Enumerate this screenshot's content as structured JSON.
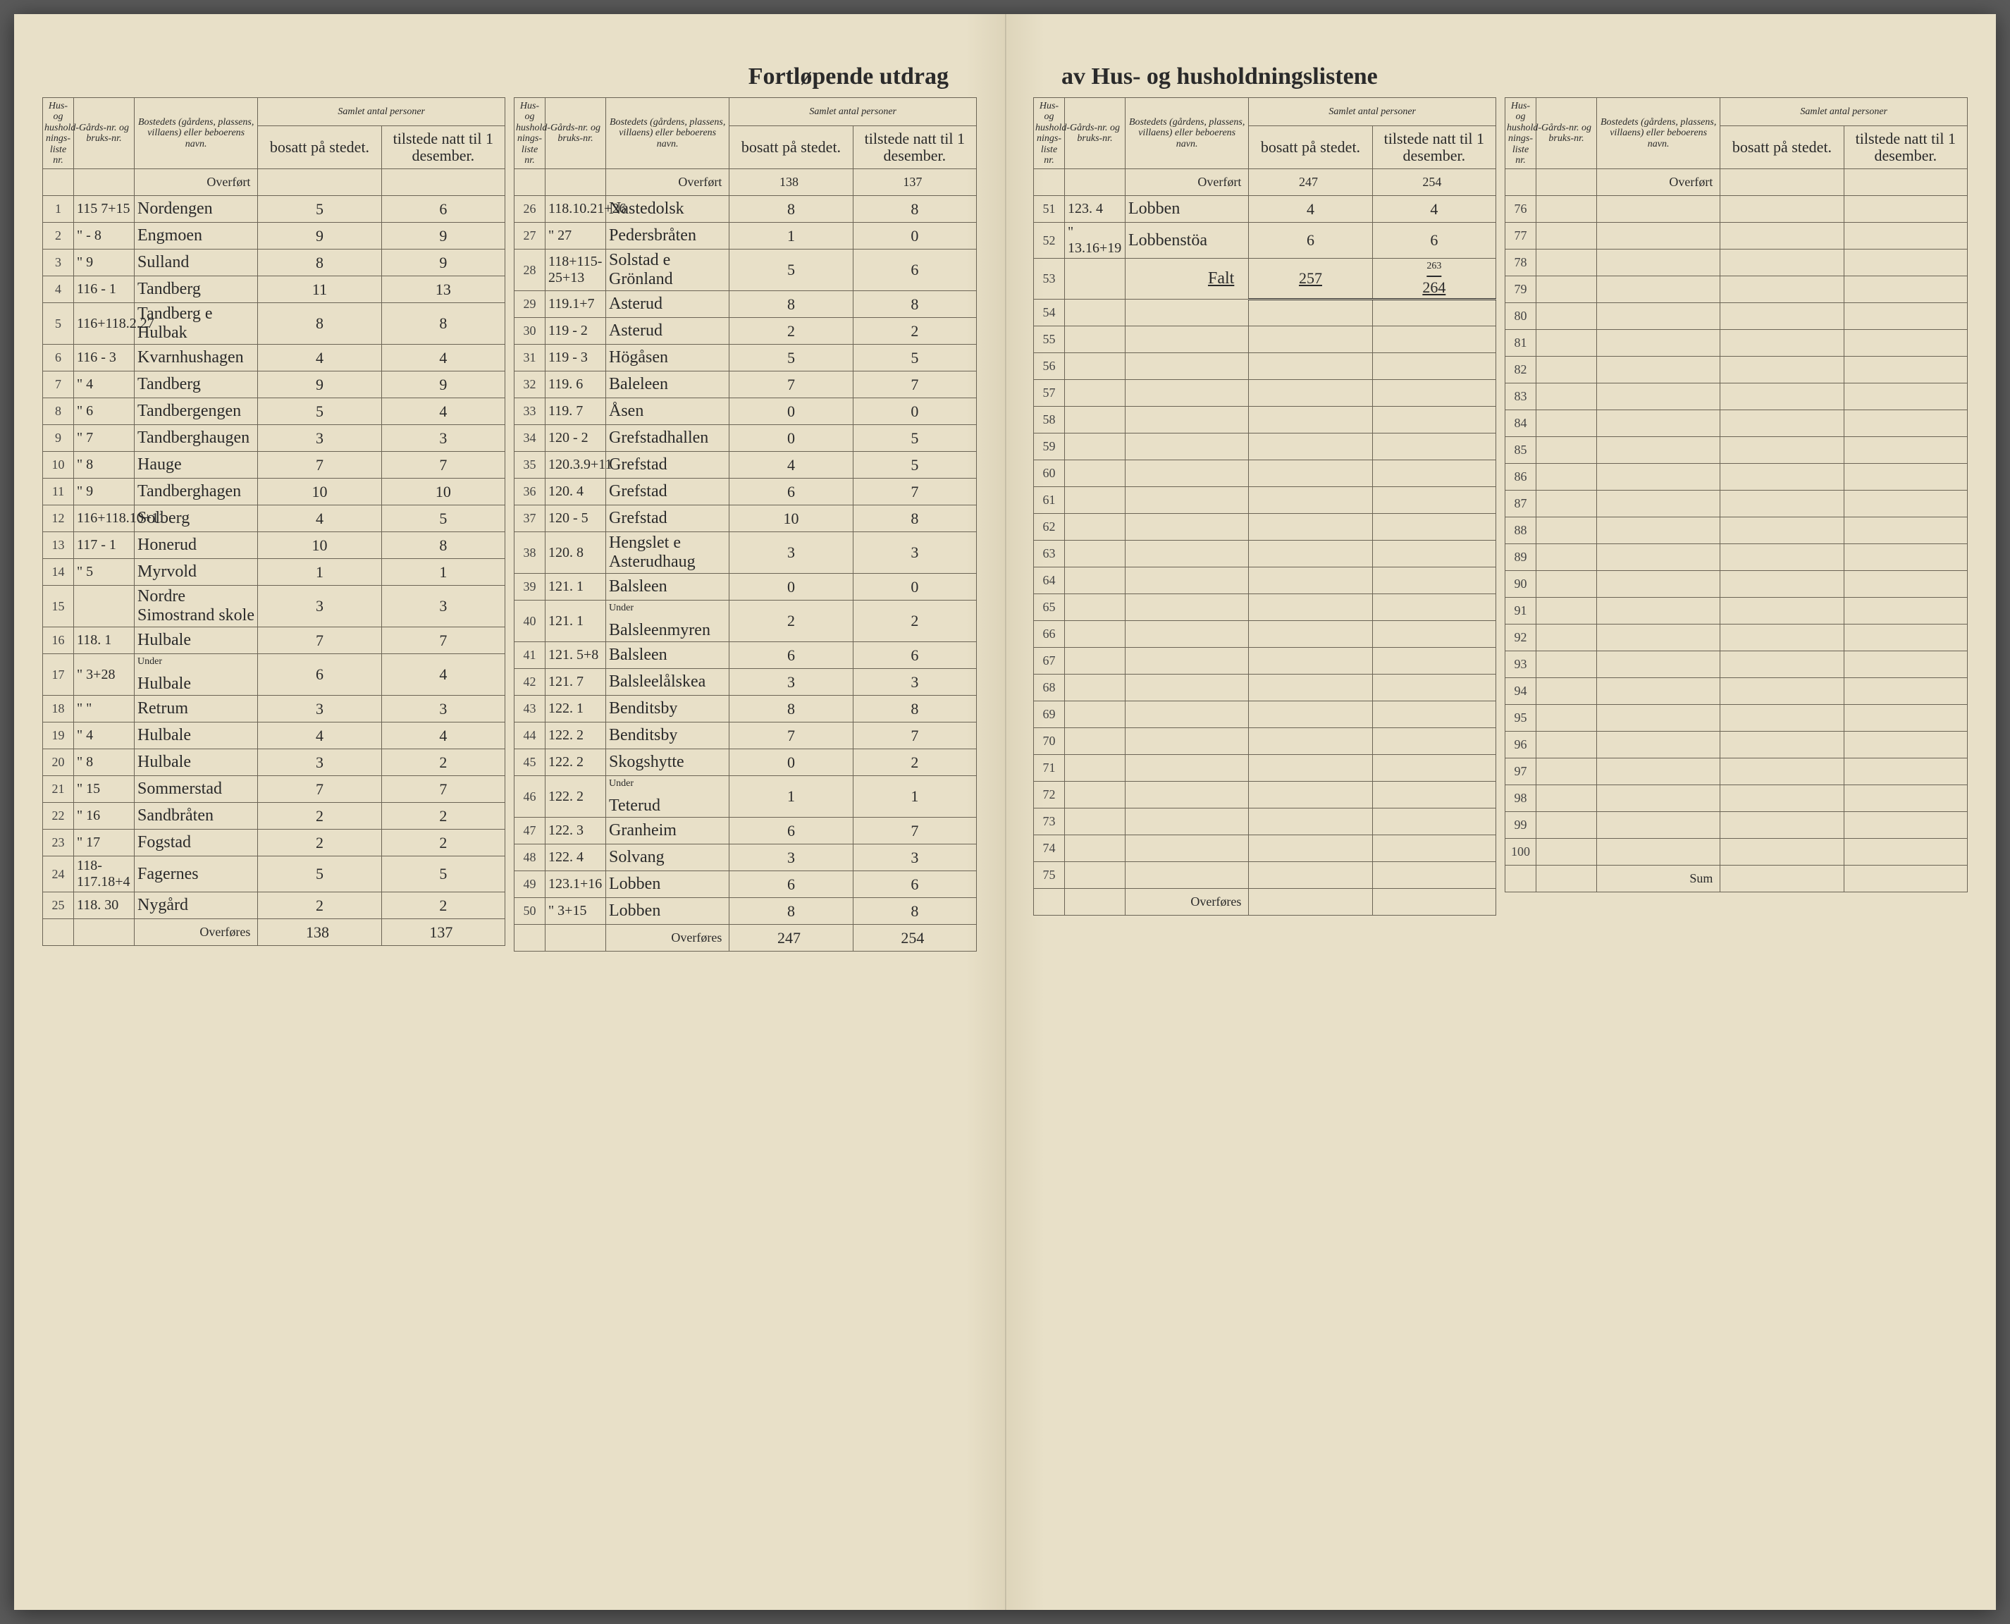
{
  "title_left": "Fortløpende utdrag",
  "title_right": "av Hus- og husholdningslistene",
  "headers": {
    "liste_nr": "Hus- og hushold-nings-liste nr.",
    "gard_nr": "Gårds-nr. og bruks-nr.",
    "navn": "Bostedets (gårdens, plassens, villaens) eller beboerens navn.",
    "samlet": "Samlet antal personer",
    "bosatt": "bosatt på stedet.",
    "tilstede": "tilstede natt til 1 desember."
  },
  "labels": {
    "overfort": "Overført",
    "overfores": "Overføres",
    "sum": "Sum",
    "under": "Under",
    "falt": "Falt"
  },
  "sections": [
    {
      "overfort": {
        "bosatt": "",
        "tilstede": ""
      },
      "rows": [
        {
          "nr": "1",
          "gard": "115 7+15",
          "navn": "Nordengen",
          "b": "5",
          "t": "6"
        },
        {
          "nr": "2",
          "gard": "\" - 8",
          "navn": "Engmoen",
          "b": "9",
          "t": "9"
        },
        {
          "nr": "3",
          "gard": "\"  9",
          "navn": "Sulland",
          "b": "8",
          "t": "9"
        },
        {
          "nr": "4",
          "gard": "116 - 1",
          "navn": "Tandberg",
          "b": "11",
          "t": "13"
        },
        {
          "nr": "5",
          "gard": "116+118.2.27",
          "navn": "Tandberg e Hulbak",
          "b": "8",
          "t": "8"
        },
        {
          "nr": "6",
          "gard": "116 - 3",
          "navn": "Kvarnhushagen",
          "b": "4",
          "t": "4"
        },
        {
          "nr": "7",
          "gard": "\"  4",
          "navn": "Tandberg",
          "b": "9",
          "t": "9"
        },
        {
          "nr": "8",
          "gard": "\"  6",
          "navn": "Tandbergengen",
          "b": "5",
          "t": "4"
        },
        {
          "nr": "9",
          "gard": "\"  7",
          "navn": "Tandberghaugen",
          "b": "3",
          "t": "3"
        },
        {
          "nr": "10",
          "gard": "\"  8",
          "navn": "Hauge",
          "b": "7",
          "t": "7"
        },
        {
          "nr": "11",
          "gard": "\"  9",
          "navn": "Tandberghagen",
          "b": "10",
          "t": "10"
        },
        {
          "nr": "12",
          "gard": "116+118.10+11",
          "navn": "Solberg",
          "b": "4",
          "t": "5"
        },
        {
          "nr": "13",
          "gard": "117 - 1",
          "navn": "Honerud",
          "b": "10",
          "t": "8"
        },
        {
          "nr": "14",
          "gard": "\"  5",
          "navn": "Myrvold",
          "b": "1",
          "t": "1"
        },
        {
          "nr": "15",
          "gard": "",
          "navn": "Nordre Simostrand skole",
          "b": "3",
          "t": "3"
        },
        {
          "nr": "16",
          "gard": "118. 1",
          "navn": "Hulbale",
          "b": "7",
          "t": "7"
        },
        {
          "nr": "17",
          "gard": "\" 3+28",
          "navn": "Hulbale",
          "b": "6",
          "t": "4",
          "under": true
        },
        {
          "nr": "18",
          "gard": "\"  \"",
          "navn": "Retrum",
          "b": "3",
          "t": "3"
        },
        {
          "nr": "19",
          "gard": "\"  4",
          "navn": "Hulbale",
          "b": "4",
          "t": "4"
        },
        {
          "nr": "20",
          "gard": "\"  8",
          "navn": "Hulbale",
          "b": "3",
          "t": "2"
        },
        {
          "nr": "21",
          "gard": "\"  15",
          "navn": "Sommerstad",
          "b": "7",
          "t": "7"
        },
        {
          "nr": "22",
          "gard": "\"  16",
          "navn": "Sandbråten",
          "b": "2",
          "t": "2"
        },
        {
          "nr": "23",
          "gard": "\"  17",
          "navn": "Fogstad",
          "b": "2",
          "t": "2"
        },
        {
          "nr": "24",
          "gard": "118-117.18+4",
          "navn": "Fagernes",
          "b": "5",
          "t": "5"
        },
        {
          "nr": "25",
          "gard": "118. 30",
          "navn": "Nygård",
          "b": "2",
          "t": "2"
        }
      ],
      "overfores": {
        "bosatt": "138",
        "tilstede": "137"
      }
    },
    {
      "overfort": {
        "bosatt": "138",
        "tilstede": "137"
      },
      "rows": [
        {
          "nr": "26",
          "gard": "118.10.21+26",
          "navn": "Nastedolsk",
          "b": "8",
          "t": "8"
        },
        {
          "nr": "27",
          "gard": "\"  27",
          "navn": "Pedersbråten",
          "b": "1",
          "t": "0"
        },
        {
          "nr": "28",
          "gard": "118+115-25+13",
          "navn": "Solstad e Grönland",
          "b": "5",
          "t": "6"
        },
        {
          "nr": "29",
          "gard": "119.1+7",
          "navn": "Asterud",
          "b": "8",
          "t": "8"
        },
        {
          "nr": "30",
          "gard": "119 - 2",
          "navn": "Asterud",
          "b": "2",
          "t": "2"
        },
        {
          "nr": "31",
          "gard": "119 - 3",
          "navn": "Högåsen",
          "b": "5",
          "t": "5"
        },
        {
          "nr": "32",
          "gard": "119. 6",
          "navn": "Baleleen",
          "b": "7",
          "t": "7"
        },
        {
          "nr": "33",
          "gard": "119. 7",
          "navn": "Åsen",
          "b": "0",
          "t": "0"
        },
        {
          "nr": "34",
          "gard": "120 - 2",
          "navn": "Grefstadhallen",
          "b": "0",
          "t": "5"
        },
        {
          "nr": "35",
          "gard": "120.3.9+11",
          "navn": "Grefstad",
          "b": "4",
          "t": "5"
        },
        {
          "nr": "36",
          "gard": "120. 4",
          "navn": "Grefstad",
          "b": "6",
          "t": "7"
        },
        {
          "nr": "37",
          "gard": "120 - 5",
          "navn": "Grefstad",
          "b": "10",
          "t": "8"
        },
        {
          "nr": "38",
          "gard": "120. 8",
          "navn": "Hengslet e Asterudhaug",
          "b": "3",
          "t": "3"
        },
        {
          "nr": "39",
          "gard": "121. 1",
          "navn": "Balsleen",
          "b": "0",
          "t": "0"
        },
        {
          "nr": "40",
          "gard": "121. 1",
          "navn": "Balsleenmyren",
          "b": "2",
          "t": "2",
          "under": true
        },
        {
          "nr": "41",
          "gard": "121. 5+8",
          "navn": "Balsleen",
          "b": "6",
          "t": "6"
        },
        {
          "nr": "42",
          "gard": "121. 7",
          "navn": "Balsleelålskea",
          "b": "3",
          "t": "3"
        },
        {
          "nr": "43",
          "gard": "122. 1",
          "navn": "Benditsby",
          "b": "8",
          "t": "8"
        },
        {
          "nr": "44",
          "gard": "122. 2",
          "navn": "Benditsby",
          "b": "7",
          "t": "7"
        },
        {
          "nr": "45",
          "gard": "122. 2",
          "navn": "Skogshytte",
          "b": "0",
          "t": "2"
        },
        {
          "nr": "46",
          "gard": "122. 2",
          "navn": "Teterud",
          "b": "1",
          "t": "1",
          "under": true
        },
        {
          "nr": "47",
          "gard": "122. 3",
          "navn": "Granheim",
          "b": "6",
          "t": "7"
        },
        {
          "nr": "48",
          "gard": "122. 4",
          "navn": "Solvang",
          "b": "3",
          "t": "3"
        },
        {
          "nr": "49",
          "gard": "123.1+16",
          "navn": "Lobben",
          "b": "6",
          "t": "6"
        },
        {
          "nr": "50",
          "gard": "\"  3+15",
          "navn": "Lobben",
          "b": "8",
          "t": "8"
        }
      ],
      "overfores": {
        "bosatt": "247",
        "tilstede": "254"
      }
    },
    {
      "overfort": {
        "bosatt": "247",
        "tilstede": "254"
      },
      "rows": [
        {
          "nr": "51",
          "gard": "123. 4",
          "navn": "Lobben",
          "b": "4",
          "t": "4"
        },
        {
          "nr": "52",
          "gard": "\" 13.16+19",
          "navn": "Lobbenstöa",
          "b": "6",
          "t": "6"
        },
        {
          "nr": "53",
          "gard": "",
          "navn": "Falt",
          "b": "257",
          "t": "264",
          "falt": true,
          "strike": "263"
        },
        {
          "nr": "54"
        },
        {
          "nr": "55"
        },
        {
          "nr": "56"
        },
        {
          "nr": "57"
        },
        {
          "nr": "58"
        },
        {
          "nr": "59"
        },
        {
          "nr": "60"
        },
        {
          "nr": "61"
        },
        {
          "nr": "62"
        },
        {
          "nr": "63"
        },
        {
          "nr": "64"
        },
        {
          "nr": "65"
        },
        {
          "nr": "66"
        },
        {
          "nr": "67"
        },
        {
          "nr": "68"
        },
        {
          "nr": "69"
        },
        {
          "nr": "70"
        },
        {
          "nr": "71"
        },
        {
          "nr": "72"
        },
        {
          "nr": "73"
        },
        {
          "nr": "74"
        },
        {
          "nr": "75"
        }
      ],
      "overfores": {
        "bosatt": "",
        "tilstede": ""
      }
    },
    {
      "overfort": {
        "bosatt": "",
        "tilstede": ""
      },
      "rows": [
        {
          "nr": "76"
        },
        {
          "nr": "77"
        },
        {
          "nr": "78"
        },
        {
          "nr": "79"
        },
        {
          "nr": "80"
        },
        {
          "nr": "81"
        },
        {
          "nr": "82"
        },
        {
          "nr": "83"
        },
        {
          "nr": "84"
        },
        {
          "nr": "85"
        },
        {
          "nr": "86"
        },
        {
          "nr": "87"
        },
        {
          "nr": "88"
        },
        {
          "nr": "89"
        },
        {
          "nr": "90"
        },
        {
          "nr": "91"
        },
        {
          "nr": "92"
        },
        {
          "nr": "93"
        },
        {
          "nr": "94"
        },
        {
          "nr": "95"
        },
        {
          "nr": "96"
        },
        {
          "nr": "97"
        },
        {
          "nr": "98"
        },
        {
          "nr": "99"
        },
        {
          "nr": "100"
        }
      ],
      "overfores": {
        "bosatt": "",
        "tilstede": "",
        "sum": true
      }
    }
  ]
}
